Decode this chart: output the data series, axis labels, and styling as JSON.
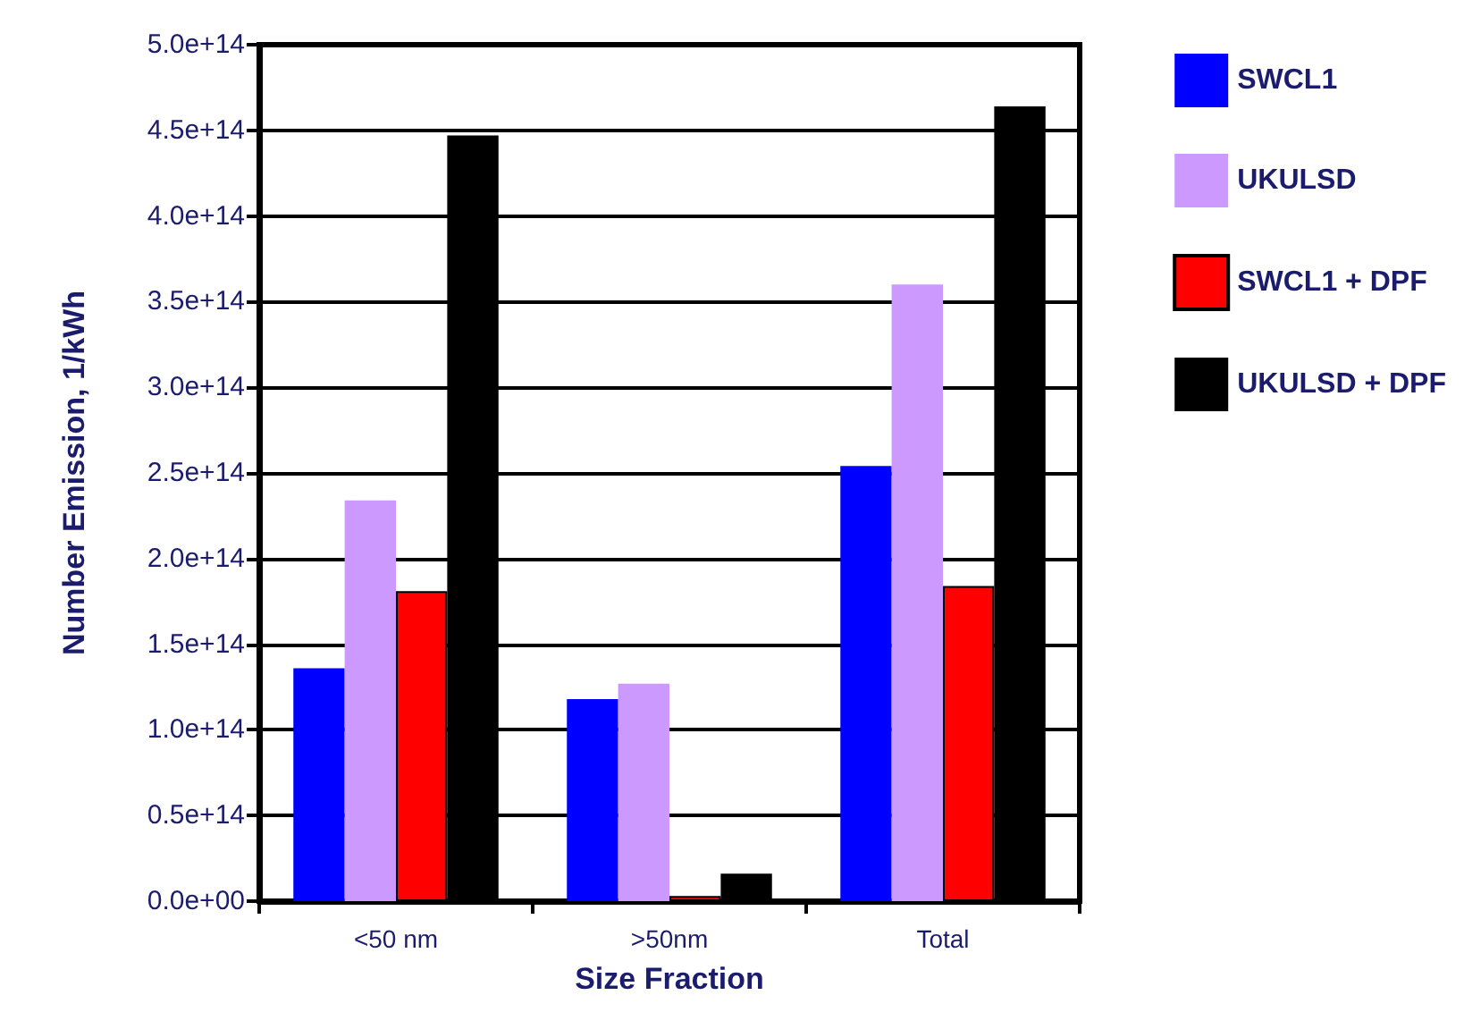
{
  "chart_data": {
    "type": "bar",
    "xlabel": "Size Fraction",
    "ylabel": "Number Emission, 1/kWh",
    "categories": [
      "<50 nm",
      ">50nm",
      "Total"
    ],
    "series": [
      {
        "name": "SWCL1",
        "color": "#0000ff",
        "values": [
          136000000000000.0,
          118000000000000.0,
          254000000000000.0
        ]
      },
      {
        "name": "UKULSD",
        "color": "#cc99ff",
        "values": [
          234000000000000.0,
          127000000000000.0,
          360000000000000.0
        ]
      },
      {
        "name": "SWCL1 + DPF",
        "color": "#ff0000",
        "values": [
          181000000000000.0,
          3000000000000.0,
          184000000000000.0
        ]
      },
      {
        "name": "UKULSD + DPF",
        "color": "#000000",
        "values": [
          447000000000000.0,
          16000000000000.0,
          464000000000000.0
        ]
      }
    ],
    "ylim": [
      0,
      500000000000000.0
    ],
    "yticks": [
      {
        "value": 0,
        "label": "0.0e+00"
      },
      {
        "value": 50000000000000.0,
        "label": "0.5e+14"
      },
      {
        "value": 100000000000000.0,
        "label": "1.0e+14"
      },
      {
        "value": 150000000000000.0,
        "label": "1.5e+14"
      },
      {
        "value": 200000000000000.0,
        "label": "2.0e+14"
      },
      {
        "value": 250000000000000.0,
        "label": "2.5e+14"
      },
      {
        "value": 300000000000000.0,
        "label": "3.0e+14"
      },
      {
        "value": 350000000000000.0,
        "label": "3.5e+14"
      },
      {
        "value": 400000000000000.0,
        "label": "4.0e+14"
      },
      {
        "value": 450000000000000.0,
        "label": "4.5e+14"
      },
      {
        "value": 500000000000000.0,
        "label": "5.0e+14"
      }
    ],
    "grid": "y",
    "legend": "right"
  }
}
